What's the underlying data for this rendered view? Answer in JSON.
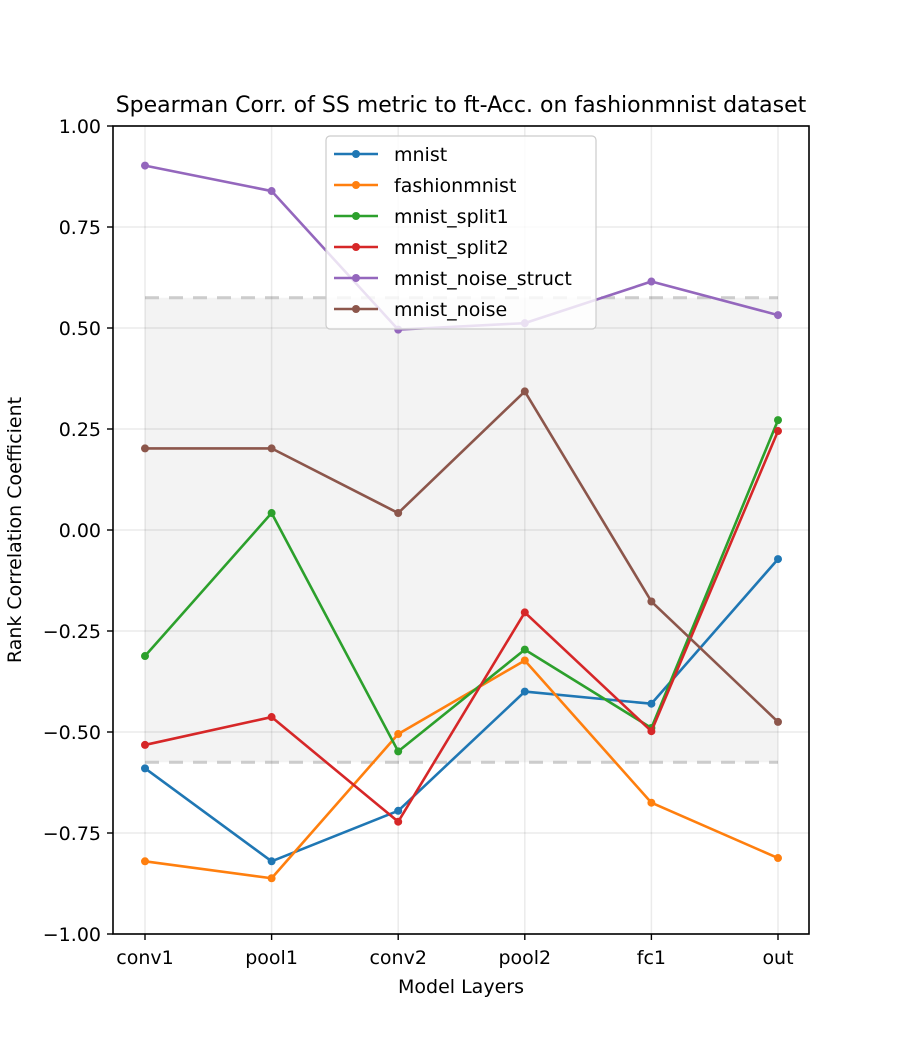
{
  "chart_data": {
    "type": "line",
    "title": "Spearman Corr. of SS metric to ft-Acc. on fashionmnist dataset",
    "xlabel": "Model Layers",
    "ylabel": "Rank Correlation Coefficient",
    "categories": [
      "conv1",
      "pool1",
      "conv2",
      "pool2",
      "fc1",
      "out"
    ],
    "ylim": [
      -1.0,
      1.0
    ],
    "yticks": [
      -1.0,
      -0.75,
      -0.5,
      -0.25,
      0.0,
      0.25,
      0.5,
      0.75,
      1.0
    ],
    "ytick_labels": [
      "−1.00",
      "−0.75",
      "−0.50",
      "−0.25",
      "0.00",
      "0.25",
      "0.50",
      "0.75",
      "1.00"
    ],
    "grid": true,
    "legend_position": "top-center",
    "significance_band": [
      -0.575,
      0.575
    ],
    "series": [
      {
        "name": "mnist",
        "color": "#1f77b4",
        "values": [
          -0.59,
          -0.82,
          -0.695,
          -0.4,
          -0.43,
          -0.072
        ]
      },
      {
        "name": "fashionmnist",
        "color": "#ff7f0e",
        "values": [
          -0.82,
          -0.862,
          -0.505,
          -0.323,
          -0.675,
          -0.812
        ]
      },
      {
        "name": "mnist_split1",
        "color": "#2ca02c",
        "values": [
          -0.312,
          0.042,
          -0.548,
          -0.296,
          -0.49,
          0.272
        ]
      },
      {
        "name": "mnist_split2",
        "color": "#d62728",
        "values": [
          -0.532,
          -0.463,
          -0.722,
          -0.204,
          -0.498,
          0.245
        ]
      },
      {
        "name": "mnist_noise_struct",
        "color": "#9467bd",
        "values": [
          0.902,
          0.839,
          0.496,
          0.512,
          0.615,
          0.532
        ]
      },
      {
        "name": "mnist_noise",
        "color": "#8c564b",
        "values": [
          0.202,
          0.202,
          0.042,
          0.343,
          -0.177,
          -0.475
        ]
      }
    ]
  }
}
